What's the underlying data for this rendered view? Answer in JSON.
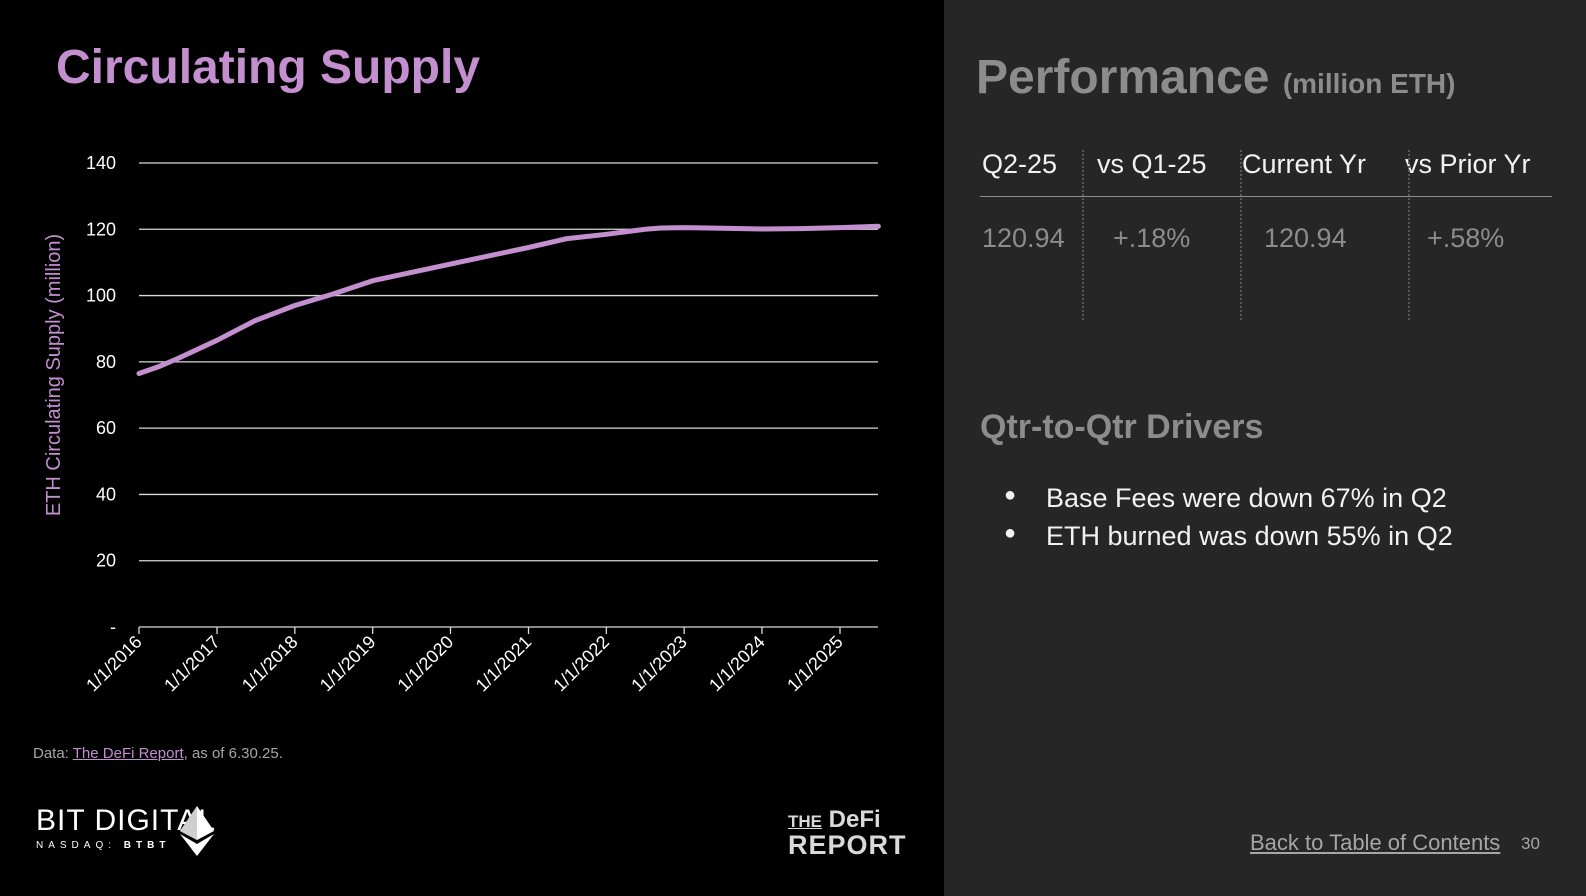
{
  "slide": {
    "title": "Circulating Supply",
    "source_prefix": "Data: ",
    "source_link": "The DeFi Report",
    "source_suffix": ", as of 6.30.25.",
    "page_number": "30",
    "toc_link": "Back to Table of Contents"
  },
  "logos": {
    "bit_digital_name": "BIT DIGITAL",
    "bit_digital_exchange": "NASDAQ:",
    "bit_digital_ticker": "BTBT",
    "defi_the": "THE",
    "defi_word": "DeFi",
    "defi_report": "REPORT"
  },
  "performance": {
    "title": "Performance",
    "unit": "(million ETH)",
    "columns": [
      {
        "header": "Q2-25",
        "value": "120.94"
      },
      {
        "header": "vs Q1-25",
        "value": "+.18%"
      },
      {
        "header": "Current Yr",
        "value": "120.94"
      },
      {
        "header": "vs Prior Yr",
        "value": "+.58%"
      }
    ]
  },
  "drivers": {
    "title": "Qtr-to-Qtr Drivers",
    "items": [
      "Base Fees were down 67% in Q2",
      "ETH burned was down 55% in Q2"
    ]
  },
  "colors": {
    "accent": "#c38fcf",
    "left_bg": "#000000",
    "right_bg": "#262626"
  },
  "chart_data": {
    "type": "line",
    "title": "",
    "xlabel": "",
    "ylabel": "ETH Circulating Supply (million)",
    "ylim": [
      0,
      140
    ],
    "yticks": [
      0,
      20,
      40,
      60,
      80,
      100,
      120,
      140
    ],
    "ytick_labels": [
      "-",
      "20",
      "40",
      "60",
      "80",
      "100",
      "120",
      "140"
    ],
    "grid": true,
    "x_tick_labels": [
      "1/1/2016",
      "1/1/2017",
      "1/1/2018",
      "1/1/2019",
      "1/1/2020",
      "1/1/2021",
      "1/1/2022",
      "1/1/2023",
      "1/1/2024",
      "1/1/2025"
    ],
    "series": [
      {
        "x": [
          "1/1/2016",
          "4/1/2016",
          "7/1/2016",
          "1/1/2017",
          "7/1/2017",
          "1/1/2018",
          "7/1/2018",
          "1/1/2019",
          "7/1/2019",
          "1/1/2020",
          "7/1/2020",
          "1/1/2021",
          "7/1/2021",
          "1/1/2022",
          "7/1/2022",
          "9/15/2022",
          "1/1/2023",
          "7/1/2023",
          "1/1/2024",
          "7/1/2024",
          "1/1/2025",
          "6/30/2025"
        ],
        "y": [
          76.5,
          78.5,
          81,
          86.5,
          92.5,
          97,
          100.5,
          104.5,
          107,
          109.5,
          112,
          114.5,
          117.2,
          118.5,
          120,
          120.4,
          120.5,
          120.3,
          120.1,
          120.2,
          120.5,
          120.9
        ]
      }
    ]
  }
}
